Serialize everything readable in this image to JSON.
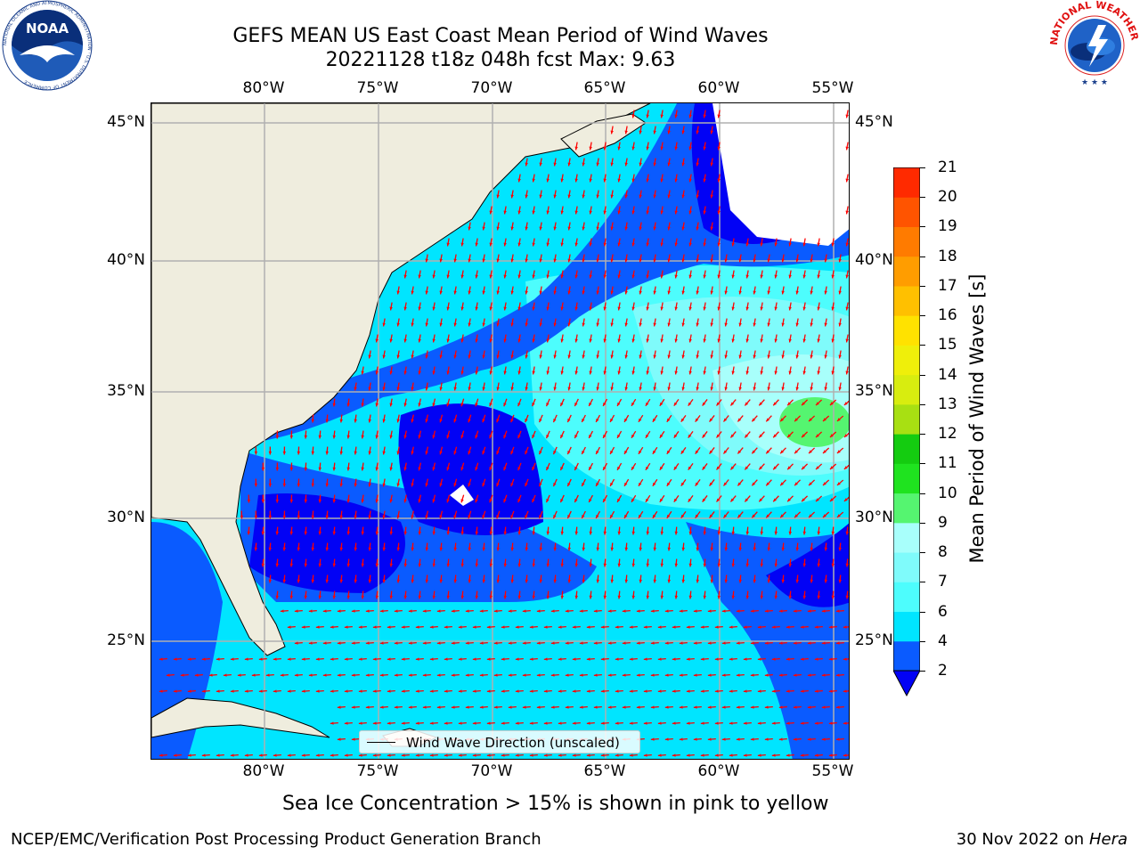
{
  "title": {
    "line1": "GEFS MEAN US East Coast Mean Period of Wind Waves",
    "line2": "20221128 t18z 048h fcst   Max: 9.63"
  },
  "axes": {
    "lon_labels": [
      "80°W",
      "75°W",
      "70°W",
      "65°W",
      "60°W",
      "55°W"
    ],
    "lat_labels": [
      "45°N",
      "40°N",
      "35°N",
      "30°N",
      "25°N"
    ]
  },
  "map_legend": {
    "text": "Wind Wave Direction (unscaled)"
  },
  "colorbar": {
    "label": "Mean Period of Wind Waves [s]",
    "ticks": [
      "2",
      "4",
      "6",
      "7",
      "8",
      "9",
      "10",
      "11",
      "12",
      "13",
      "14",
      "15",
      "16",
      "17",
      "18",
      "19",
      "20",
      "21"
    ],
    "colors": [
      "#0a5bff",
      "#00e5ff",
      "#4dfdfd",
      "#7ffbfb",
      "#a8fffb",
      "#55f570",
      "#1fe31f",
      "#14cc10",
      "#a8e012",
      "#d8ed0f",
      "#efef0a",
      "#ffe200",
      "#ffc000",
      "#ff9d00",
      "#ff7b00",
      "#ff5400",
      "#ff2a00"
    ],
    "under_color": "#0202f5"
  },
  "caption": "Sea Ice Concentration > 15% is shown in pink to yellow",
  "footer": {
    "left": "NCEP/EMC/Verification Post Processing Product Generation Branch",
    "right_date": "30 Nov 2022 on",
    "right_host": "Hera"
  },
  "logos": {
    "left_text": "NOAA",
    "left_ring": "NATIONAL OCEANIC AND ATMOSPHERIC ADMINISTRATION · U.S. DEPARTMENT OF COMMERCE",
    "right_ring": "NATIONAL WEATHER SERVICE"
  },
  "colors": {
    "land": "#efedde",
    "arrow": "#ff0000",
    "grid": "#b0b0b0"
  }
}
